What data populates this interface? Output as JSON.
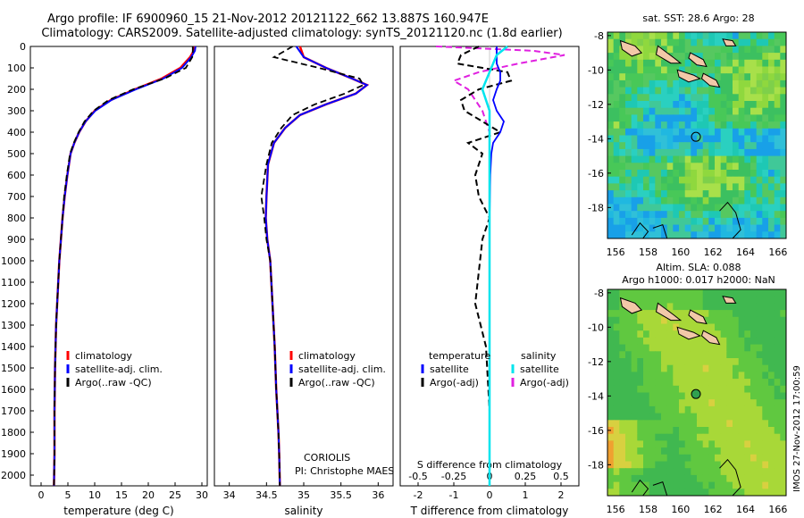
{
  "header": {
    "line1": "Argo profile: IF 6900960_15 21-Nov-2012 20121122_662 13.887S 160.947E",
    "line2": "Climatology: CARS2009. Satellite-adjusted climatology: synTS_20121120.nc (1.8d earlier)"
  },
  "side_label": "IMOS 27-Nov-2012 17:00:59",
  "colors": {
    "climatology": "#ff0000",
    "satellite": "#0000ff",
    "argo": "#000000",
    "sal_satellite": "#00e5ee",
    "sal_argo": "#e020e0"
  },
  "panel1": {
    "xlabel": "temperature (deg C)",
    "xticks": [
      "0",
      "5",
      "10",
      "15",
      "20",
      "25",
      "30"
    ],
    "yticks": [
      "0",
      "100",
      "200",
      "300",
      "400",
      "500",
      "600",
      "700",
      "800",
      "900",
      "1000",
      "1100",
      "1200",
      "1300",
      "1400",
      "1500",
      "1600",
      "1700",
      "1800",
      "1900",
      "2000"
    ],
    "legend": [
      "climatology",
      "satellite-adj. clim.",
      "Argo(..raw -QC)"
    ]
  },
  "panel2": {
    "xlabel": "salinity",
    "xticks": [
      "34",
      "34.5",
      "35",
      "35.5",
      "36"
    ],
    "legend": [
      "climatology",
      "satellite-adj. clim.",
      "Argo(..raw -QC)"
    ],
    "note1": "CORIOLIS",
    "note2": "PI: Christophe MAES"
  },
  "panel3": {
    "top_ticks": [
      "-0.5",
      "-0.25",
      "0",
      "0.25",
      "0.5"
    ],
    "bottom_ticks": [
      "-2",
      "-1",
      "0",
      "1",
      "2"
    ],
    "top_label": "S difference from climatology",
    "xlabel": "T difference from climatology",
    "legend_title_t": "temperature",
    "legend_title_s": "salinity",
    "legend": [
      "satellite",
      "Argo(-adj)",
      "satellite",
      "Argo(-adj)"
    ]
  },
  "map1": {
    "title": "sat. SST: 28.6 Argo: 28",
    "yticks": [
      "-8",
      "-10",
      "-12",
      "-14",
      "-16",
      "-18"
    ],
    "xticks": [
      "156",
      "158",
      "160",
      "162",
      "164",
      "166"
    ]
  },
  "map2": {
    "title1": "Altim. SLA: 0.088",
    "title2": "Argo h1000: 0.017 h2000: NaN",
    "yticks": [
      "-8",
      "-10",
      "-12",
      "-14",
      "-16",
      "-18"
    ],
    "xticks": [
      "156",
      "158",
      "160",
      "162",
      "164",
      "166"
    ]
  },
  "chart_data": [
    {
      "type": "line",
      "title": "",
      "xlabel": "temperature (deg C)",
      "ylabel": "",
      "xlim": [
        -2,
        31
      ],
      "ylim": [
        2050,
        0
      ],
      "series": [
        {
          "name": "climatology",
          "x": [
            28.6,
            28.5,
            27.8,
            26.0,
            22.5,
            17.5,
            13.0,
            10.0,
            8.3,
            7.1,
            6.2,
            5.5,
            4.9,
            4.4,
            4.0,
            3.7,
            3.4,
            3.2,
            3.0,
            2.8,
            2.7,
            2.6,
            2.5,
            2.5,
            2.4
          ],
          "y": [
            0,
            20,
            50,
            100,
            150,
            200,
            250,
            300,
            350,
            400,
            450,
            500,
            600,
            700,
            800,
            900,
            1000,
            1100,
            1200,
            1300,
            1400,
            1500,
            1700,
            1900,
            2050
          ]
        },
        {
          "name": "satellite-adj. clim.",
          "x": [
            28.8,
            28.7,
            28.0,
            26.3,
            22.8,
            17.7,
            13.1,
            10.1,
            8.3,
            7.1,
            6.2,
            5.5,
            4.9,
            4.4,
            4.0,
            3.7,
            3.4,
            3.2,
            3.0,
            2.8,
            2.7,
            2.6,
            2.5,
            2.5,
            2.4
          ],
          "y": [
            0,
            20,
            50,
            100,
            150,
            200,
            250,
            300,
            350,
            400,
            450,
            500,
            600,
            700,
            800,
            900,
            1000,
            1100,
            1200,
            1300,
            1400,
            1500,
            1700,
            1900,
            2050
          ]
        },
        {
          "name": "Argo(..raw -QC)",
          "x": [
            28.3,
            28.3,
            28.2,
            27.0,
            23.0,
            17.2,
            12.6,
            9.8,
            8.1,
            7.0,
            6.1,
            5.4,
            4.8,
            4.3,
            4.0,
            3.7,
            3.4,
            3.2,
            3.0,
            2.8,
            2.7,
            2.6,
            2.5,
            2.5,
            2.4
          ],
          "y": [
            0,
            20,
            50,
            100,
            150,
            200,
            250,
            300,
            350,
            400,
            450,
            500,
            600,
            700,
            800,
            900,
            1000,
            1100,
            1200,
            1300,
            1400,
            1500,
            1700,
            1900,
            2050
          ]
        }
      ]
    },
    {
      "type": "line",
      "title": "",
      "xlabel": "salinity",
      "ylabel": "",
      "xlim": [
        33.8,
        36.2
      ],
      "ylim": [
        2050,
        0
      ],
      "series": [
        {
          "name": "climatology",
          "x": [
            34.95,
            35.0,
            35.3,
            35.65,
            35.85,
            35.7,
            35.3,
            34.95,
            34.75,
            34.6,
            34.52,
            34.5,
            34.49,
            34.51,
            34.55,
            34.58,
            34.61,
            34.63,
            34.66,
            34.67,
            34.68
          ],
          "y": [
            0,
            50,
            100,
            150,
            180,
            220,
            270,
            320,
            380,
            450,
            550,
            700,
            800,
            900,
            1000,
            1200,
            1400,
            1600,
            1800,
            1900,
            2050
          ]
        },
        {
          "name": "satellite-adj. clim.",
          "x": [
            34.9,
            35.0,
            35.3,
            35.65,
            35.85,
            35.7,
            35.3,
            34.95,
            34.75,
            34.6,
            34.52,
            34.5,
            34.49,
            34.51,
            34.55,
            34.58,
            34.61,
            34.63,
            34.66,
            34.67,
            34.68
          ],
          "y": [
            0,
            50,
            100,
            150,
            180,
            220,
            270,
            320,
            380,
            450,
            550,
            700,
            800,
            900,
            1000,
            1200,
            1400,
            1600,
            1800,
            1900,
            2050
          ]
        },
        {
          "name": "Argo(..raw -QC)",
          "x": [
            34.85,
            34.6,
            35.2,
            35.75,
            35.8,
            35.55,
            35.15,
            34.85,
            34.7,
            34.57,
            34.5,
            34.43,
            34.47,
            34.5,
            34.55,
            34.58,
            34.61,
            34.63,
            34.66,
            34.67,
            34.68
          ],
          "y": [
            0,
            50,
            100,
            150,
            180,
            220,
            270,
            320,
            380,
            450,
            550,
            700,
            800,
            900,
            1000,
            1200,
            1400,
            1600,
            1800,
            1900,
            2050
          ]
        }
      ]
    },
    {
      "type": "line",
      "title": "",
      "xlabel": "T difference from climatology",
      "ylabel": "",
      "xlim": [
        -2.5,
        2.5
      ],
      "ylim": [
        2050,
        0
      ],
      "series": [
        {
          "name": "temperature satellite",
          "x": [
            0.2,
            0.2,
            0.2,
            0.3,
            0.3,
            0.2,
            0.1,
            0.2,
            0.4,
            0.3,
            0.1,
            0.05,
            0.02,
            0.0,
            0.0,
            0.0,
            0.0
          ],
          "y": [
            0,
            40,
            80,
            120,
            160,
            200,
            250,
            300,
            350,
            400,
            450,
            500,
            600,
            800,
            1200,
            1600,
            2050
          ]
        },
        {
          "name": "temperature Argo(-adj)",
          "x": [
            -0.3,
            -0.8,
            -0.9,
            0.5,
            0.6,
            -0.3,
            -0.8,
            -0.7,
            -0.2,
            0.3,
            -0.6,
            -0.2,
            -0.4,
            -0.3,
            0.0,
            -0.2,
            -0.4,
            -0.1,
            0.0,
            0.0
          ],
          "y": [
            0,
            40,
            80,
            120,
            160,
            200,
            250,
            300,
            350,
            400,
            450,
            500,
            600,
            700,
            800,
            900,
            1200,
            1400,
            1700,
            2050
          ]
        },
        {
          "name": "salinity satellite",
          "x": [
            0.5,
            0.2,
            0.1,
            0.0,
            -0.1,
            -0.2,
            0.0,
            0.0,
            0.0,
            0.0,
            0.0
          ],
          "y": [
            0,
            40,
            80,
            120,
            160,
            200,
            300,
            400,
            600,
            1200,
            2050
          ]
        },
        {
          "name": "salinity Argo(-adj)",
          "x": [
            -1.5,
            1.2,
            2.1,
            0.8,
            -0.3,
            -1.0,
            -0.6,
            -0.2,
            0.0,
            0.0
          ],
          "y": [
            0,
            20,
            40,
            80,
            120,
            160,
            200,
            300,
            400,
            500
          ]
        }
      ]
    }
  ]
}
